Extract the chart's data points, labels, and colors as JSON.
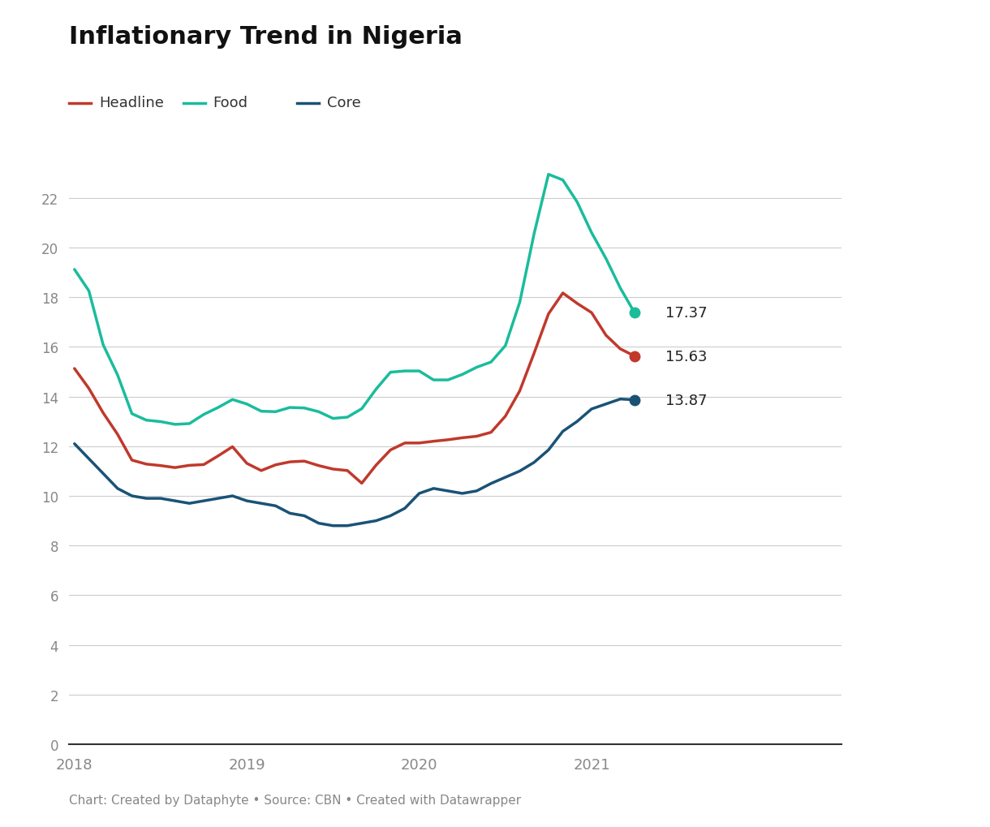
{
  "title": "Inflationary Trend in Nigeria",
  "subtitle": "Chart: Created by Dataphyte • Source: CBN • Created with Datawrapper",
  "legend": [
    "Headline",
    "Food",
    "Core"
  ],
  "colors": {
    "headline": "#c0392b",
    "food": "#1abc9c",
    "core": "#1a5276"
  },
  "headline": [
    15.13,
    14.33,
    13.34,
    12.48,
    11.44,
    11.28,
    11.22,
    11.14,
    11.23,
    11.26,
    11.61,
    11.98,
    11.31,
    11.02,
    11.25,
    11.37,
    11.4,
    11.22,
    11.08,
    11.02,
    10.51,
    11.24,
    11.85,
    12.13,
    12.13,
    12.2,
    12.26,
    12.34,
    12.4,
    12.56,
    13.21,
    14.23,
    15.75,
    17.33,
    18.17,
    17.75,
    17.38,
    16.47,
    15.92,
    15.63
  ],
  "food": [
    19.12,
    18.26,
    16.08,
    14.87,
    13.31,
    13.05,
    12.99,
    12.88,
    12.91,
    13.28,
    13.56,
    13.88,
    13.7,
    13.41,
    13.39,
    13.56,
    13.54,
    13.39,
    13.12,
    13.17,
    13.51,
    14.3,
    14.98,
    15.03,
    15.03,
    14.67,
    14.67,
    14.89,
    15.18,
    15.39,
    16.05,
    17.8,
    20.56,
    22.95,
    22.72,
    21.83,
    20.6,
    19.56,
    18.37,
    17.37
  ],
  "core": [
    12.1,
    11.5,
    10.9,
    10.3,
    10.0,
    9.9,
    9.9,
    9.8,
    9.7,
    9.8,
    9.9,
    10.0,
    9.8,
    9.7,
    9.6,
    9.3,
    9.2,
    8.9,
    8.8,
    8.8,
    8.9,
    9.0,
    9.2,
    9.5,
    10.1,
    10.3,
    10.2,
    10.1,
    10.2,
    10.5,
    10.75,
    11.0,
    11.35,
    11.85,
    12.6,
    13.0,
    13.5,
    13.7,
    13.9,
    13.87
  ],
  "ylim": [
    0,
    24
  ],
  "yticks": [
    0,
    2,
    4,
    6,
    8,
    10,
    12,
    14,
    16,
    18,
    20,
    22
  ],
  "end_values": {
    "food": 17.37,
    "headline": 15.63,
    "core": 13.87
  },
  "background_color": "#ffffff",
  "n_months": 40,
  "start_year": 2018
}
